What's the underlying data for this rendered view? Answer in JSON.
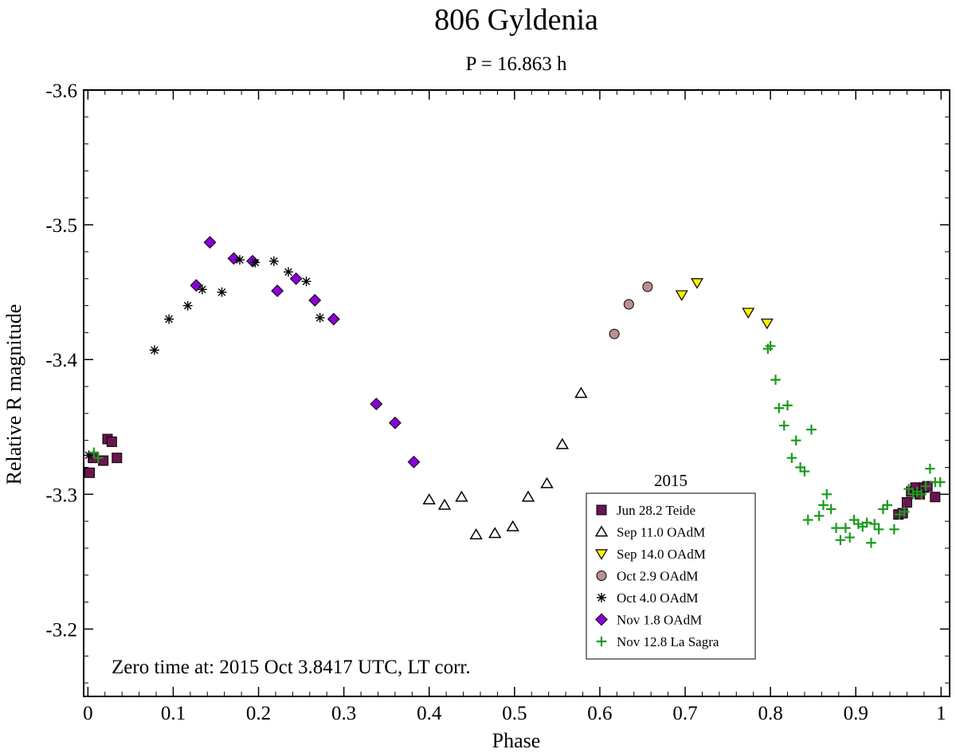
{
  "chart_data": {
    "type": "scatter",
    "title": "806 Gyldenia",
    "subtitle": "P = 16.863 h",
    "xlabel": "Phase",
    "ylabel": "Relative R magnitude",
    "xlim": [
      -0.005,
      1.01
    ],
    "ylim": [
      -3.6,
      -3.15
    ],
    "y_inverted": true,
    "x_ticks": [
      0,
      0.1,
      0.2,
      0.3,
      0.4,
      0.5,
      0.6,
      0.7,
      0.8,
      0.9,
      1
    ],
    "x_tick_labels": [
      "0",
      "0.1",
      "0.2",
      "0.3",
      "0.4",
      "0.5",
      "0.6",
      "0.7",
      "0.8",
      "0.9",
      "1"
    ],
    "y_ticks": [
      -3.6,
      -3.5,
      -3.4,
      -3.3,
      -3.2
    ],
    "y_tick_labels": [
      "-3.6",
      "-3.5",
      "-3.4",
      "-3.3",
      "-3.2"
    ],
    "grid": false,
    "legend_title": "2015",
    "legend_position": "bottom-right",
    "annotation": "Zero time at: 2015 Oct 3.8417 UTC, LT corr.",
    "series": [
      {
        "name": "Jun 28.2 Teide",
        "marker": "square",
        "color": "#6b1550",
        "points": [
          [
            0.002,
            -3.316
          ],
          [
            0.006,
            -3.327
          ],
          [
            0.018,
            -3.325
          ],
          [
            0.023,
            -3.341
          ],
          [
            0.028,
            -3.339
          ],
          [
            0.034,
            -3.327
          ],
          [
            0.95,
            -3.285
          ],
          [
            0.955,
            -3.286
          ],
          [
            0.96,
            -3.294
          ],
          [
            0.965,
            -3.302
          ],
          [
            0.97,
            -3.305
          ],
          [
            0.975,
            -3.3
          ],
          [
            0.98,
            -3.305
          ],
          [
            0.984,
            -3.306
          ],
          [
            0.993,
            -3.298
          ]
        ]
      },
      {
        "name": "Sep 11.0 OAdM",
        "marker": "triangle-up",
        "color": "#ffffff",
        "points": [
          [
            0.4,
            -3.296
          ],
          [
            0.418,
            -3.292
          ],
          [
            0.438,
            -3.298
          ],
          [
            0.455,
            -3.27
          ],
          [
            0.477,
            -3.271
          ],
          [
            0.498,
            -3.276
          ],
          [
            0.516,
            -3.298
          ],
          [
            0.538,
            -3.308
          ],
          [
            0.556,
            -3.337
          ],
          [
            0.578,
            -3.375
          ]
        ]
      },
      {
        "name": "Sep 14.0 OAdM",
        "marker": "triangle-down",
        "color": "#ffee00",
        "points": [
          [
            0.696,
            -3.448
          ],
          [
            0.714,
            -3.457
          ],
          [
            0.774,
            -3.435
          ],
          [
            0.796,
            -3.427
          ]
        ]
      },
      {
        "name": "Oct 2.9 OAdM",
        "marker": "circle",
        "color": "#bc8f8f",
        "points": [
          [
            0.617,
            -3.419
          ],
          [
            0.634,
            -3.441
          ],
          [
            0.656,
            -3.454
          ]
        ]
      },
      {
        "name": "Oct 4.0 OAdM",
        "marker": "asterisk",
        "color": "#000000",
        "points": [
          [
            0.001,
            -3.329
          ],
          [
            0.078,
            -3.407
          ],
          [
            0.095,
            -3.43
          ],
          [
            0.117,
            -3.44
          ],
          [
            0.134,
            -3.452
          ],
          [
            0.157,
            -3.45
          ],
          [
            0.178,
            -3.474
          ],
          [
            0.196,
            -3.472
          ],
          [
            0.218,
            -3.473
          ],
          [
            0.235,
            -3.465
          ],
          [
            0.256,
            -3.458
          ],
          [
            0.272,
            -3.431
          ]
        ]
      },
      {
        "name": "Nov 1.8 OAdM",
        "marker": "diamond",
        "color": "#8b00d6",
        "points": [
          [
            0.127,
            -3.455
          ],
          [
            0.143,
            -3.487
          ],
          [
            0.171,
            -3.475
          ],
          [
            0.193,
            -3.473
          ],
          [
            0.222,
            -3.451
          ],
          [
            0.244,
            -3.46
          ],
          [
            0.266,
            -3.444
          ],
          [
            0.288,
            -3.43
          ],
          [
            0.338,
            -3.367
          ],
          [
            0.36,
            -3.353
          ],
          [
            0.382,
            -3.324
          ]
        ]
      },
      {
        "name": "Nov 12.8 La Sagra",
        "marker": "plus",
        "color": "#1a9a1a",
        "points": [
          [
            0.007,
            -3.331
          ],
          [
            0.012,
            -3.327
          ],
          [
            0.797,
            -3.408
          ],
          [
            0.8,
            -3.41
          ],
          [
            0.806,
            -3.385
          ],
          [
            0.81,
            -3.364
          ],
          [
            0.816,
            -3.351
          ],
          [
            0.82,
            -3.366
          ],
          [
            0.825,
            -3.327
          ],
          [
            0.83,
            -3.34
          ],
          [
            0.835,
            -3.32
          ],
          [
            0.84,
            -3.317
          ],
          [
            0.844,
            -3.281
          ],
          [
            0.848,
            -3.348
          ],
          [
            0.857,
            -3.284
          ],
          [
            0.862,
            -3.292
          ],
          [
            0.866,
            -3.3
          ],
          [
            0.871,
            -3.289
          ],
          [
            0.877,
            -3.275
          ],
          [
            0.882,
            -3.266
          ],
          [
            0.888,
            -3.275
          ],
          [
            0.893,
            -3.268
          ],
          [
            0.898,
            -3.281
          ],
          [
            0.903,
            -3.278
          ],
          [
            0.908,
            -3.276
          ],
          [
            0.913,
            -3.279
          ],
          [
            0.918,
            -3.264
          ],
          [
            0.922,
            -3.278
          ],
          [
            0.927,
            -3.274
          ],
          [
            0.932,
            -3.289
          ],
          [
            0.937,
            -3.292
          ],
          [
            0.945,
            -3.274
          ],
          [
            0.951,
            -3.285
          ],
          [
            0.957,
            -3.287
          ],
          [
            0.962,
            -3.304
          ],
          [
            0.967,
            -3.3
          ],
          [
            0.972,
            -3.302
          ],
          [
            0.977,
            -3.3
          ],
          [
            0.982,
            -3.306
          ],
          [
            0.987,
            -3.319
          ],
          [
            0.993,
            -3.309
          ],
          [
            0.999,
            -3.309
          ]
        ]
      }
    ]
  }
}
